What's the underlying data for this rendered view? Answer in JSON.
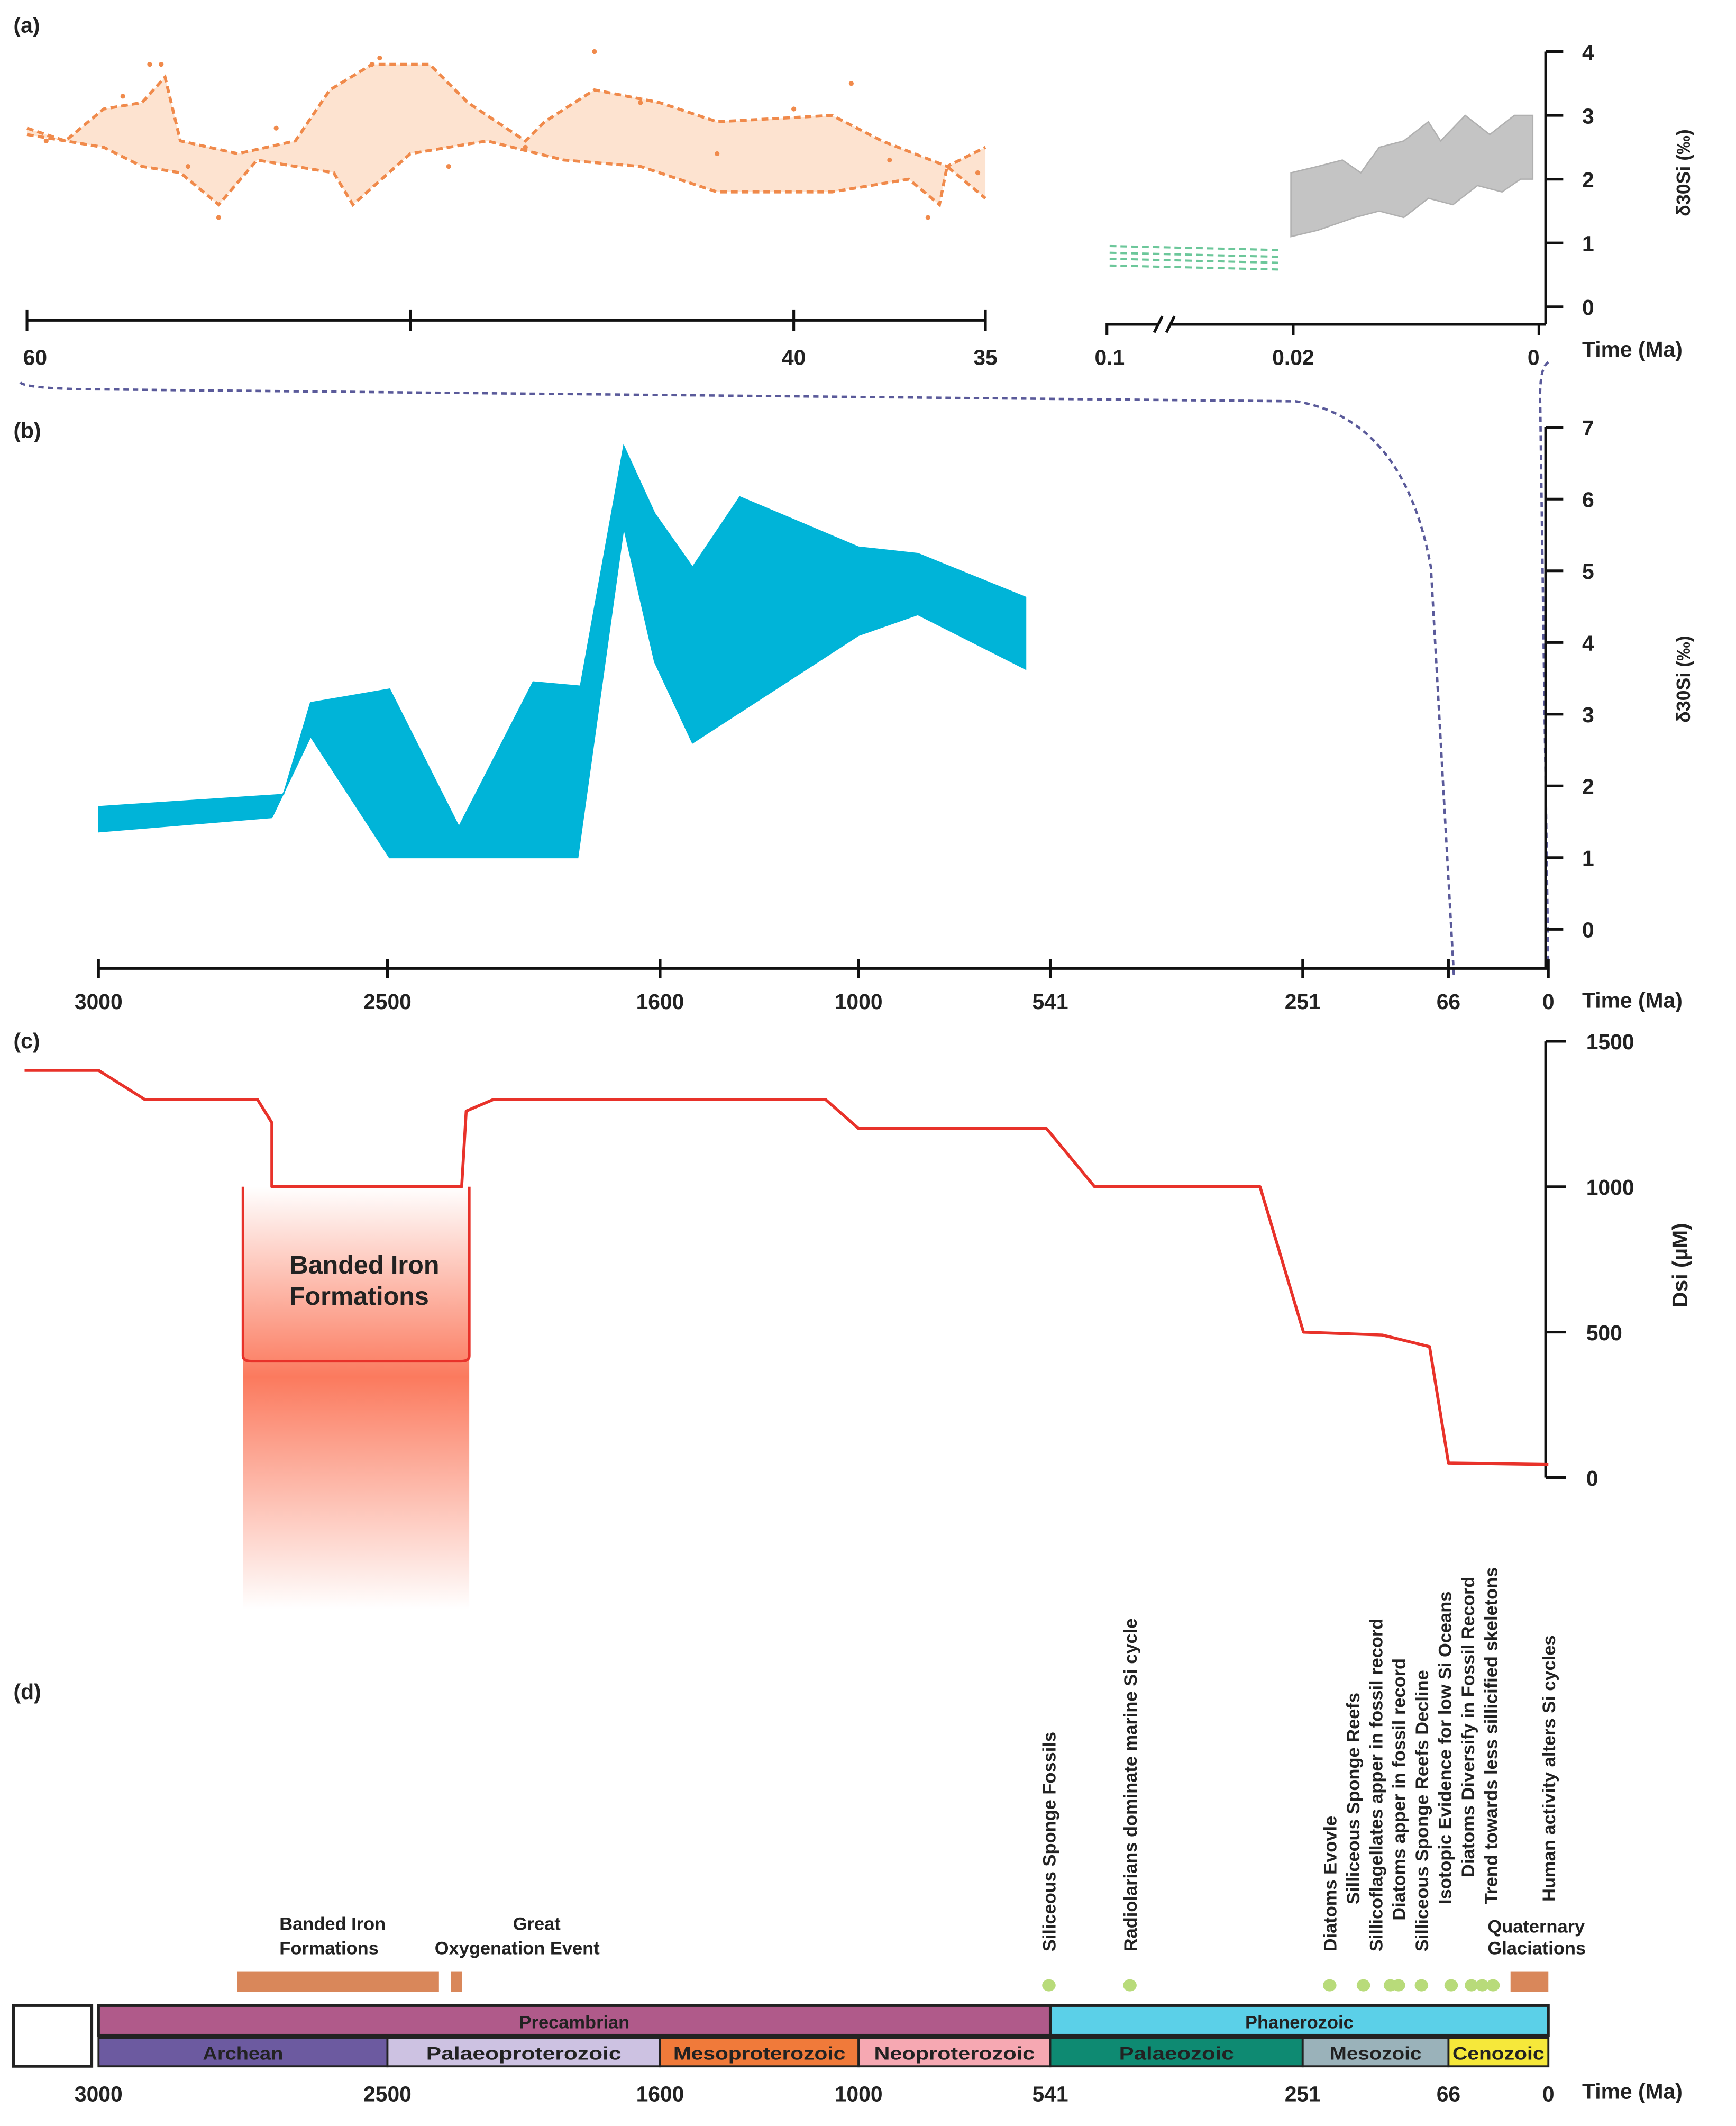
{
  "panels": {
    "a": "(a)",
    "b": "(b)",
    "c": "(c)",
    "d": "(d)"
  },
  "time_label": "Time (Ma)",
  "d30_label": "δ30Si (‰)",
  "bif_box_label": [
    "Banded Iron",
    "Formations"
  ],
  "chart_data": [
    {
      "panel": "(a)",
      "type": "area",
      "xlabel": "Time (Ma)",
      "ylabel": "δ30Si (‰)",
      "ylim": [
        0,
        4
      ],
      "yticks": [
        "0",
        "1",
        "2",
        "3",
        "4"
      ],
      "xticks_left": [
        {
          "v": 60,
          "label": "60"
        },
        {
          "v": 50,
          "label": ""
        },
        {
          "v": 40,
          "label": "40"
        },
        {
          "v": 35,
          "label": "35"
        }
      ],
      "xticks_right": [
        {
          "v": 0.1,
          "label": "0.1"
        },
        {
          "v": 0.02,
          "label": "0.02"
        },
        {
          "v": 0,
          "label": "0"
        }
      ],
      "colors": {
        "orange": "#f08a4b",
        "orange_fill": "#fde3d0",
        "green": "#6cc79a",
        "grey": "#c4c4c4"
      },
      "orange_band": {
        "upper": [
          [
            60,
            2.8
          ],
          [
            59,
            2.6
          ],
          [
            58,
            3.1
          ],
          [
            57,
            3.2
          ],
          [
            56.4,
            3.6
          ],
          [
            56,
            2.6
          ],
          [
            54.5,
            2.4
          ],
          [
            53,
            2.6
          ],
          [
            52.1,
            3.4
          ],
          [
            51,
            3.8
          ],
          [
            49.5,
            3.8
          ],
          [
            48.5,
            3.2
          ],
          [
            47,
            2.6
          ],
          [
            46.5,
            2.9
          ],
          [
            45.2,
            3.4
          ],
          [
            43.5,
            3.2
          ],
          [
            42,
            2.9
          ],
          [
            39,
            3.0
          ],
          [
            37.7,
            2.6
          ],
          [
            36,
            2.2
          ],
          [
            35,
            2.5
          ]
        ],
        "lower": [
          [
            60,
            2.7
          ],
          [
            58,
            2.5
          ],
          [
            57,
            2.2
          ],
          [
            56,
            2.1
          ],
          [
            55,
            1.6
          ],
          [
            54,
            2.3
          ],
          [
            52,
            2.1
          ],
          [
            51.5,
            1.6
          ],
          [
            50,
            2.4
          ],
          [
            48,
            2.6
          ],
          [
            46,
            2.3
          ],
          [
            44,
            2.2
          ],
          [
            42,
            1.8
          ],
          [
            39,
            1.8
          ],
          [
            37,
            2.0
          ],
          [
            36.2,
            1.6
          ],
          [
            36,
            2.2
          ],
          [
            35,
            1.7
          ]
        ]
      },
      "scatter": [
        [
          59.5,
          2.6
        ],
        [
          57.5,
          3.3
        ],
        [
          56.8,
          3.8
        ],
        [
          56.5,
          3.8
        ],
        [
          55.8,
          2.2
        ],
        [
          55,
          1.4
        ],
        [
          53.5,
          2.8
        ],
        [
          51,
          3.8
        ],
        [
          50.8,
          3.9
        ],
        [
          49,
          2.2
        ],
        [
          47,
          2.5
        ],
        [
          45.2,
          4.0
        ],
        [
          44,
          3.2
        ],
        [
          42,
          2.4
        ],
        [
          40,
          3.1
        ],
        [
          38.5,
          3.5
        ],
        [
          37.5,
          2.3
        ],
        [
          36.5,
          1.4
        ],
        [
          35.2,
          2.1
        ]
      ],
      "green_band": {
        "x": [
          0.1,
          0.021
        ],
        "upper": 0.9,
        "lower": 0.7
      },
      "grey_band": {
        "upper": [
          [
            0.021,
            2.1
          ],
          [
            0.018,
            2.2
          ],
          [
            0.016,
            2.3
          ],
          [
            0.0145,
            2.1
          ],
          [
            0.013,
            2.5
          ],
          [
            0.011,
            2.6
          ],
          [
            0.009,
            2.9
          ],
          [
            0.008,
            2.6
          ],
          [
            0.006,
            3.0
          ],
          [
            0.004,
            2.7
          ],
          [
            0.002,
            3.0
          ],
          [
            0.0005,
            3.0
          ]
        ],
        "lower": [
          [
            0.021,
            1.1
          ],
          [
            0.018,
            1.2
          ],
          [
            0.015,
            1.4
          ],
          [
            0.013,
            1.5
          ],
          [
            0.011,
            1.4
          ],
          [
            0.009,
            1.7
          ],
          [
            0.007,
            1.6
          ],
          [
            0.005,
            1.9
          ],
          [
            0.003,
            1.8
          ],
          [
            0.0015,
            2.0
          ],
          [
            0.0005,
            2.0
          ]
        ]
      }
    },
    {
      "panel": "(b)",
      "type": "area",
      "xlabel": "Time (Ma)",
      "ylabel": "δ30Si (‰)",
      "ylim": [
        0,
        7
      ],
      "yticks": [
        "0",
        "1",
        "2",
        "3",
        "4",
        "5",
        "6",
        "7"
      ],
      "xticks": [
        {
          "v": 3000,
          "label": "3000"
        },
        {
          "v": 2500,
          "label": "2500"
        },
        {
          "v": 1600,
          "label": "1600"
        },
        {
          "v": 1000,
          "label": "1000"
        },
        {
          "v": 541,
          "label": "541"
        },
        {
          "v": 251,
          "label": "251"
        },
        {
          "v": 66,
          "label": "66"
        },
        {
          "v": 0,
          "label": "0"
        }
      ],
      "color": "#00b4d8",
      "upper": [
        [
          3000,
          1.71
        ],
        [
          2680,
          1.88
        ],
        [
          2633,
          3.16
        ],
        [
          2493,
          3.35
        ],
        [
          2264,
          1.43
        ],
        [
          2019,
          3.45
        ],
        [
          1863,
          3.39
        ],
        [
          1720,
          6.74
        ],
        [
          1618,
          5.8
        ],
        [
          1502,
          5.05
        ],
        [
          1359,
          6.03
        ],
        [
          1000,
          5.33
        ],
        [
          858,
          5.24
        ],
        [
          600,
          4.63
        ]
      ],
      "lower": [
        [
          3000,
          1.36
        ],
        [
          2700,
          1.56
        ],
        [
          2633,
          2.69
        ],
        [
          2493,
          1.0
        ],
        [
          1872,
          1.0
        ],
        [
          1720,
          5.61
        ],
        [
          1618,
          3.73
        ],
        [
          1502,
          2.6
        ],
        [
          1000,
          4.1
        ],
        [
          858,
          4.39
        ],
        [
          600,
          3.63
        ]
      ]
    },
    {
      "panel": "(c)",
      "type": "line",
      "xlabel": "",
      "ylabel": "Dsi (µM)",
      "ylim": [
        0,
        1500
      ],
      "yticks": [
        "0",
        "500",
        "1000",
        "1500"
      ],
      "color": "#e8322a",
      "points": [
        [
          3128,
          1400
        ],
        [
          3000,
          1400
        ],
        [
          2920,
          1300
        ],
        [
          2725,
          1300
        ],
        [
          2700,
          1220
        ],
        [
          2700,
          1000
        ],
        [
          2255,
          1000
        ],
        [
          2240,
          1260
        ],
        [
          2150,
          1300
        ],
        [
          1100,
          1300
        ],
        [
          1000,
          1200
        ],
        [
          550,
          1200
        ],
        [
          490,
          1000
        ],
        [
          300,
          1000
        ],
        [
          250,
          500
        ],
        [
          150,
          490
        ],
        [
          90,
          450
        ],
        [
          66,
          50
        ],
        [
          0,
          45
        ]
      ],
      "bif_box": {
        "x": [
          2750,
          2230
        ],
        "bottom_value": 400
      }
    },
    {
      "panel": "(d)",
      "type": "table",
      "xlabel": "Time (Ma)",
      "xticks": [
        {
          "v": 3000,
          "label": "3000"
        },
        {
          "v": 2500,
          "label": "2500"
        },
        {
          "v": 1600,
          "label": "1600"
        },
        {
          "v": 1000,
          "label": "1000"
        },
        {
          "v": 541,
          "label": "541"
        },
        {
          "v": 251,
          "label": "251"
        },
        {
          "v": 66,
          "label": "66"
        },
        {
          "v": 0,
          "label": "0"
        }
      ],
      "eons": [
        {
          "name": "Precambrian",
          "from": 3000,
          "to": 541,
          "color": "#b05a8a"
        },
        {
          "name": "Phanerozoic",
          "from": 541,
          "to": 0,
          "color": "#5bd0e8"
        }
      ],
      "eras": [
        {
          "name": "Archean",
          "from": 3000,
          "to": 2500,
          "color": "#6c5aa0"
        },
        {
          "name": "Palaeoproterozoic",
          "from": 2500,
          "to": 1600,
          "color": "#cdc2e2"
        },
        {
          "name": "Mesoproterozoic",
          "from": 1600,
          "to": 1000,
          "color": "#f07a3a"
        },
        {
          "name": "Neoproterozoic",
          "from": 1000,
          "to": 541,
          "color": "#f6a8b2"
        },
        {
          "name": "Palaeozoic",
          "from": 541,
          "to": 251,
          "color": "#0e8a72"
        },
        {
          "name": "Mesozoic",
          "from": 251,
          "to": 66,
          "color": "#9ab2ba"
        },
        {
          "name": "Cenozoic",
          "from": 66,
          "to": 0,
          "color": "#f6e83a"
        }
      ],
      "bar_events": [
        {
          "label": [
            "Banded Iron",
            "Formations"
          ],
          "from": 2760,
          "to": 2330,
          "color": "#d9875a"
        },
        {
          "label": [
            "Great",
            "Oxygenation  Event"
          ],
          "from": 2290,
          "to": 2255,
          "color": "#d9875a"
        },
        {
          "label": [
            "Quaternary",
            "Glaciations"
          ],
          "from": 25,
          "to": 0,
          "color": "#d9875a"
        }
      ],
      "point_events": [
        {
          "label": "Siliceous Sponge Fossils",
          "v": 541
        },
        {
          "label": "Radiolarians dominate marine Si cycle",
          "v": 445
        },
        {
          "label": "Diatoms Evovle",
          "v": 200
        },
        {
          "label": "Silliceous Sponge Reefs",
          "v": 160
        },
        {
          "label": "Sillicoflagellates apper in fossil record",
          "v": 120
        },
        {
          "label": "Diatoms apper in fossil record",
          "v": 110
        },
        {
          "label": "Silliceous Sponge Reefs Decline",
          "v": 85
        },
        {
          "label": "Isotopic Evidence for low Si Oceans",
          "v": 55
        },
        {
          "label": "Diatoms Diversify in Fossil Record",
          "v": 40
        },
        {
          "label": "Trend towards less sillicified  skeletons",
          "v": 25
        },
        {
          "label": "Human activity alters Si cycles",
          "v": 0
        }
      ],
      "dot_color": "#b8db7a"
    }
  ]
}
